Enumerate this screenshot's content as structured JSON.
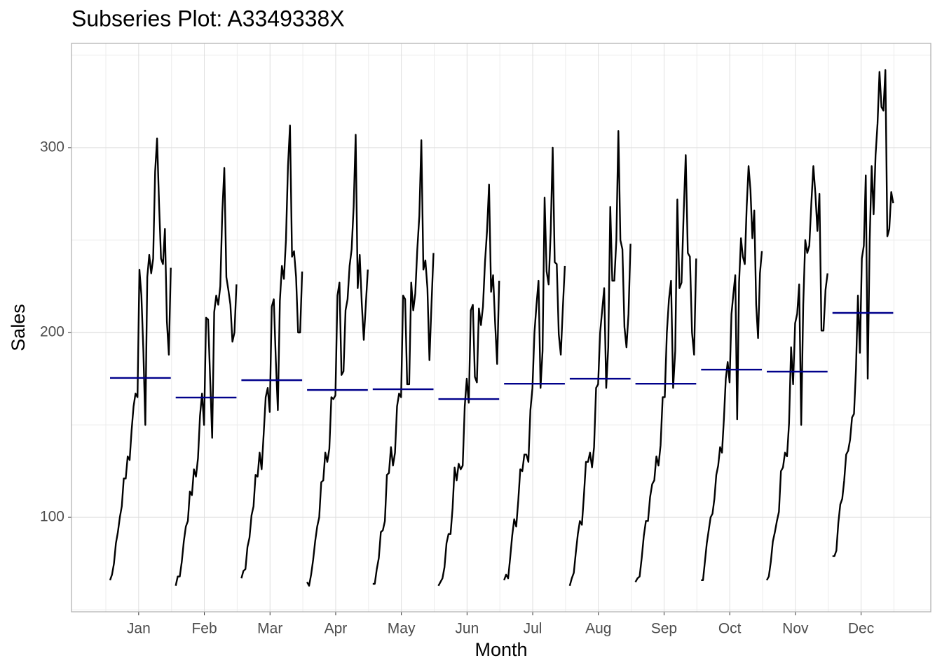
{
  "chart_data": {
    "type": "subseries",
    "title": "Subseries Plot: A3349338X",
    "xlabel": "Month",
    "ylabel": "Sales",
    "categories": [
      "Jan",
      "Feb",
      "Mar",
      "Apr",
      "May",
      "Jun",
      "Jul",
      "Aug",
      "Sep",
      "Oct",
      "Nov",
      "Dec"
    ],
    "subseries": [
      [
        66,
        69,
        75,
        86,
        92,
        100,
        106,
        121,
        121,
        133,
        131,
        147,
        160,
        167,
        165,
        234,
        220,
        190,
        150,
        230,
        242,
        232,
        240,
        287,
        305,
        270,
        240,
        237,
        256,
        206,
        188,
        235
      ],
      [
        63,
        68,
        68,
        76,
        87,
        95,
        98,
        114,
        112,
        126,
        122,
        132,
        155,
        167,
        150,
        208,
        207,
        175,
        143,
        211,
        220,
        215,
        225,
        265,
        289,
        230,
        223,
        215,
        195,
        200,
        226
      ],
      [
        67,
        71,
        72,
        84,
        89,
        101,
        106,
        123,
        122,
        135,
        126,
        145,
        165,
        170,
        157,
        214,
        218,
        185,
        158,
        217,
        236,
        229,
        250,
        290,
        312,
        241,
        244,
        230,
        200,
        200,
        233
      ],
      [
        65,
        63,
        69,
        77,
        87,
        95,
        100,
        119,
        120,
        135,
        130,
        137,
        165,
        164,
        166,
        220,
        227,
        177,
        179,
        212,
        218,
        236,
        245,
        268,
        307,
        224,
        242,
        216,
        196,
        215,
        234
      ],
      [
        64,
        64,
        72,
        78,
        92,
        93,
        98,
        123,
        124,
        138,
        128,
        135,
        160,
        167,
        165,
        220,
        218,
        172,
        172,
        227,
        212,
        221,
        245,
        263,
        304,
        234,
        239,
        224,
        185,
        215,
        243
      ],
      [
        63,
        65,
        67,
        73,
        86,
        91,
        91,
        105,
        127,
        120,
        129,
        126,
        128,
        160,
        175,
        162,
        212,
        215,
        176,
        173,
        213,
        204,
        214,
        238,
        255,
        280,
        222,
        231,
        205,
        183,
        228
      ],
      [
        66,
        69,
        67,
        78,
        90,
        99,
        95,
        109,
        126,
        125,
        134,
        134,
        130,
        158,
        170,
        200,
        215,
        228,
        170,
        190,
        273,
        233,
        226,
        254,
        300,
        238,
        237,
        199,
        188,
        213,
        236
      ],
      [
        63,
        67,
        70,
        81,
        91,
        98,
        96,
        112,
        130,
        130,
        135,
        127,
        138,
        170,
        172,
        200,
        212,
        224,
        170,
        192,
        268,
        228,
        228,
        250,
        309,
        250,
        245,
        203,
        192,
        210,
        248
      ],
      [
        65,
        67,
        68,
        78,
        90,
        98,
        98,
        111,
        118,
        120,
        133,
        128,
        139,
        165,
        165,
        200,
        218,
        228,
        170,
        190,
        272,
        224,
        227,
        264,
        296,
        243,
        241,
        200,
        188,
        240
      ],
      [
        66,
        66,
        76,
        86,
        93,
        100,
        102,
        110,
        123,
        128,
        138,
        135,
        153,
        175,
        184,
        173,
        210,
        221,
        231,
        153,
        227,
        251,
        241,
        237,
        268,
        290,
        277,
        251,
        266,
        215,
        197,
        232,
        244
      ],
      [
        66,
        68,
        76,
        87,
        92,
        98,
        103,
        125,
        127,
        135,
        133,
        151,
        192,
        172,
        205,
        210,
        226,
        150,
        215,
        250,
        243,
        247,
        270,
        290,
        275,
        255,
        275,
        201,
        201,
        223,
        232
      ],
      [
        79,
        79,
        82,
        97,
        107,
        110,
        120,
        134,
        136,
        142,
        154,
        156,
        180,
        220,
        189,
        240,
        247,
        285,
        175,
        250,
        290,
        264,
        296,
        313,
        341,
        322,
        320,
        342,
        252,
        256,
        276,
        270
      ]
    ],
    "means": [
      175.4,
      164.8,
      174.2,
      168.9,
      169.3,
      164,
      172.3,
      175,
      172.3,
      179.9,
      178.8,
      210.6
    ],
    "color": "#000000",
    "mean_color": "#00008b",
    "ylim": [
      48.9,
      356.4
    ],
    "yticks": [
      100,
      200,
      300
    ],
    "y_minor_ticks": [
      50,
      150,
      250,
      350
    ],
    "grid": true
  }
}
